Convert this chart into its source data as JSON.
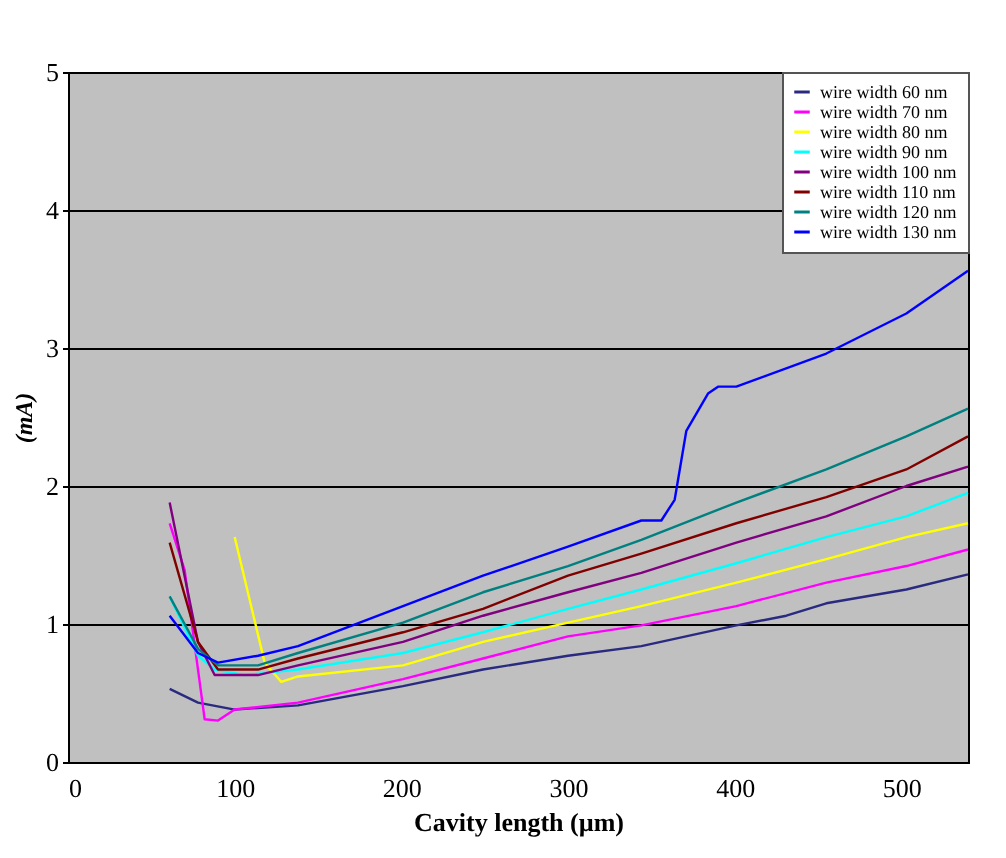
{
  "chart_data": {
    "type": "line",
    "xlabel": "Cavity length (µm)",
    "ylabel": "(mA)",
    "xlim": [
      0,
      540
    ],
    "ylim": [
      0,
      5
    ],
    "xticks": [
      0,
      100,
      200,
      300,
      400,
      500
    ],
    "yticks": [
      0,
      1,
      2,
      3,
      4,
      5
    ],
    "grid": "y",
    "legend": "top right",
    "marker": "none",
    "line_style": "solid",
    "series": [
      {
        "name": "wire width 60 nm",
        "color": "#2a2a80",
        "x": [
          61,
          78,
          100,
          138,
          201,
          249,
          300,
          344,
          401,
          431,
          455,
          503,
          540
        ],
        "values": [
          0.53,
          0.43,
          0.38,
          0.41,
          0.55,
          0.67,
          0.77,
          0.84,
          0.99,
          1.06,
          1.15,
          1.25,
          1.36
        ]
      },
      {
        "name": "wire width 70 nm",
        "color": "#ff00ff",
        "x": [
          61,
          70,
          78,
          82,
          90,
          100,
          138,
          201,
          249,
          300,
          344,
          401,
          455,
          503,
          540
        ],
        "values": [
          1.73,
          1.39,
          0.67,
          0.31,
          0.3,
          0.38,
          0.43,
          0.6,
          0.75,
          0.91,
          0.99,
          1.13,
          1.3,
          1.42,
          1.54
        ]
      },
      {
        "name": "wire width 80 nm",
        "color": "#ffff00",
        "x": [
          100,
          118,
          128,
          138,
          201,
          249,
          300,
          344,
          401,
          455,
          503,
          540
        ],
        "values": [
          1.63,
          0.72,
          0.58,
          0.62,
          0.7,
          0.87,
          1.01,
          1.13,
          1.3,
          1.47,
          1.63,
          1.73
        ]
      },
      {
        "name": "wire width 90 nm",
        "color": "#00ffff",
        "x": [
          61,
          78,
          88,
          106,
          138,
          201,
          249,
          300,
          344,
          401,
          455,
          503,
          540
        ],
        "values": [
          1.2,
          0.77,
          0.67,
          0.63,
          0.67,
          0.79,
          0.94,
          1.11,
          1.25,
          1.44,
          1.63,
          1.78,
          1.95
        ]
      },
      {
        "name": "wire width 100 nm",
        "color": "#800080",
        "x": [
          61,
          78,
          88,
          114,
          138,
          201,
          249,
          300,
          344,
          401,
          455,
          503,
          540
        ],
        "values": [
          1.88,
          0.87,
          0.63,
          0.63,
          0.7,
          0.87,
          1.06,
          1.23,
          1.37,
          1.59,
          1.78,
          2.0,
          2.14
        ]
      },
      {
        "name": "wire width 110 nm",
        "color": "#800000",
        "x": [
          61,
          78,
          90,
          114,
          138,
          201,
          249,
          300,
          344,
          401,
          455,
          503,
          540
        ],
        "values": [
          1.59,
          0.87,
          0.67,
          0.67,
          0.75,
          0.94,
          1.11,
          1.35,
          1.51,
          1.73,
          1.92,
          2.12,
          2.36
        ]
      },
      {
        "name": "wire width 120 nm",
        "color": "#008080",
        "x": [
          61,
          78,
          90,
          114,
          138,
          201,
          249,
          300,
          344,
          401,
          455,
          503,
          540
        ],
        "values": [
          1.2,
          0.82,
          0.7,
          0.7,
          0.79,
          1.01,
          1.23,
          1.42,
          1.61,
          1.88,
          2.12,
          2.36,
          2.56
        ]
      },
      {
        "name": "wire width 130 nm",
        "color": "#0000ff",
        "x": [
          61,
          78,
          90,
          114,
          138,
          201,
          249,
          300,
          344,
          356,
          364,
          371,
          384,
          390,
          401,
          455,
          503,
          540
        ],
        "values": [
          1.06,
          0.79,
          0.72,
          0.77,
          0.84,
          1.13,
          1.35,
          1.56,
          1.75,
          1.75,
          1.9,
          2.4,
          2.67,
          2.72,
          2.72,
          2.96,
          3.25,
          3.56
        ]
      }
    ]
  }
}
